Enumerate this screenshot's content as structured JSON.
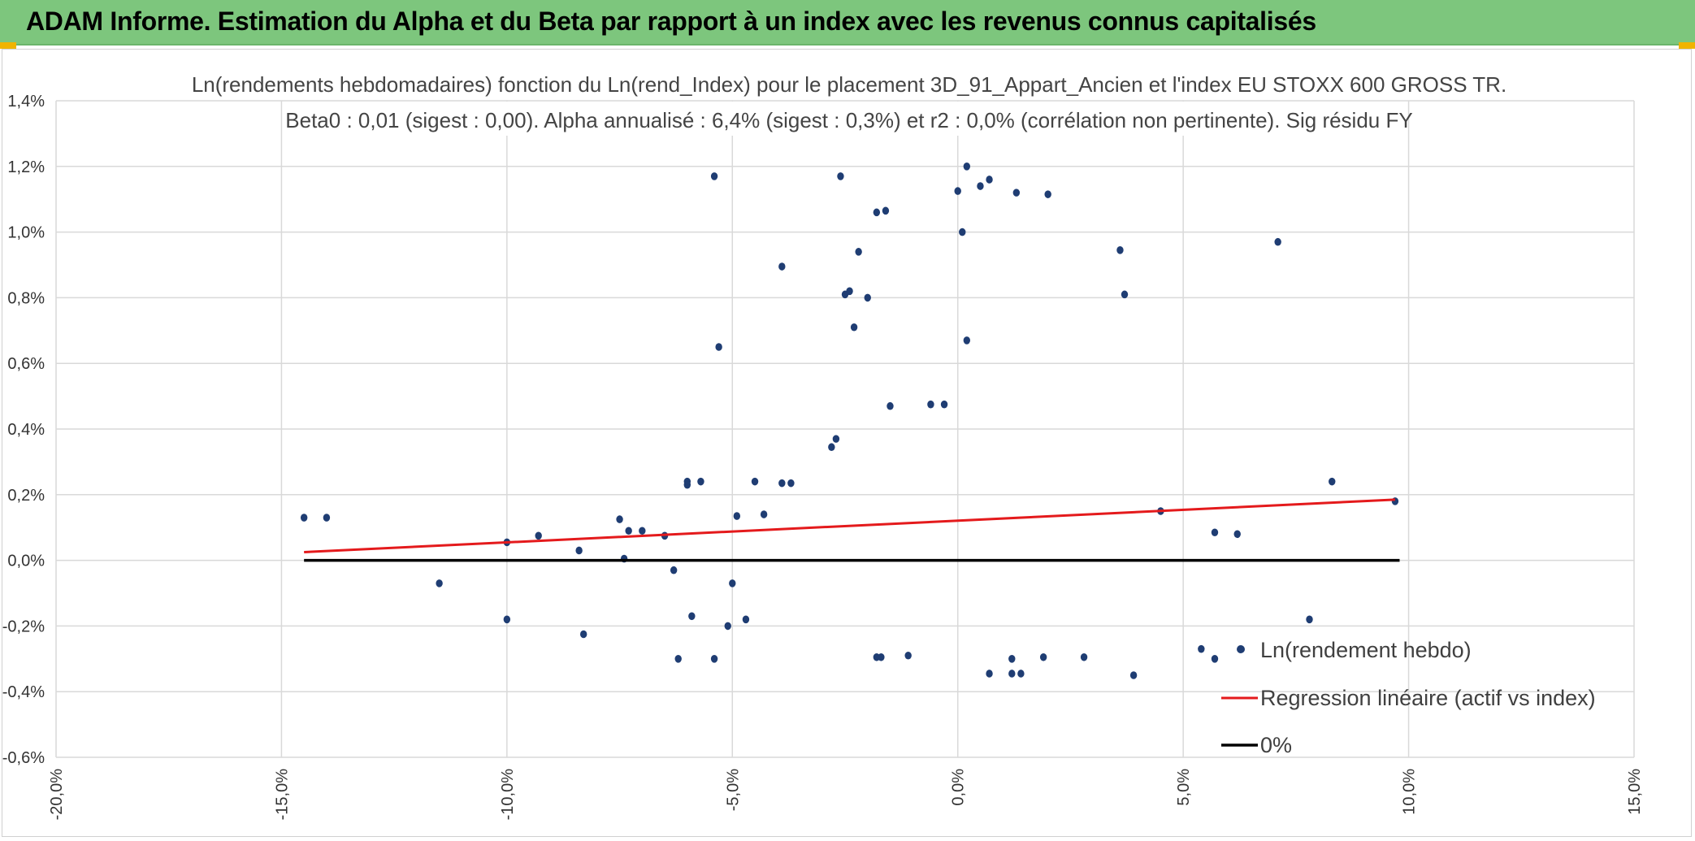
{
  "header": {
    "title": "ADAM Informe. Estimation du Alpha et du Beta par rapport à un index avec les revenus connus capitalisés"
  },
  "colors": {
    "banner": "#7dc67d",
    "points": "#1f3d73",
    "regression": "#e41a1c",
    "zero_line": "#000000",
    "grid": "#d9d9d9"
  },
  "chart_data": {
    "type": "scatter",
    "title_line1": "Ln(rendements hebdomadaires) fonction du Ln(rend_Index) pour le placement 3D_91_Appart_Ancien et l'index EU STOXX 600 GROSS TR.",
    "title_line2": "Beta0 : 0,01 (sigest : 0,00). Alpha annualisé : 6,4% (sigest : 0,3%) et r2 : 0,0% (corrélation non pertinente). Sig résidu FY",
    "xlim": [
      -20,
      15
    ],
    "ylim": [
      -0.6,
      1.4
    ],
    "x_unit": "%",
    "y_unit": "%",
    "x_ticks": [
      "-20,0%",
      "-15,0%",
      "-10,0%",
      "-5,0%",
      "0,0%",
      "5,0%",
      "10,0%",
      "15,0%"
    ],
    "y_ticks": [
      "-0,6%",
      "-0,4%",
      "-0,2%",
      "0,0%",
      "0,2%",
      "0,4%",
      "0,6%",
      "0,8%",
      "1,0%",
      "1,2%",
      "1,4%"
    ],
    "grid": true,
    "legend_position": "bottom-right",
    "legend": [
      "Ln(rendement hebdo)",
      "Regression linéaire (actif vs index)",
      "0%"
    ],
    "series": [
      {
        "name": "Ln(rendement hebdo)",
        "kind": "points",
        "points": [
          [
            -14.5,
            0.13
          ],
          [
            -14.0,
            0.13
          ],
          [
            -11.5,
            -0.07
          ],
          [
            -10.0,
            0.055
          ],
          [
            -10.0,
            -0.18
          ],
          [
            -9.3,
            0.075
          ],
          [
            -8.4,
            0.03
          ],
          [
            -8.3,
            -0.225
          ],
          [
            -7.5,
            0.125
          ],
          [
            -7.4,
            0.005
          ],
          [
            -7.3,
            0.09
          ],
          [
            -7.0,
            0.09
          ],
          [
            -6.5,
            0.075
          ],
          [
            -6.3,
            -0.03
          ],
          [
            -6.2,
            -0.3
          ],
          [
            -6.0,
            0.24
          ],
          [
            -6.0,
            0.23
          ],
          [
            -5.9,
            -0.17
          ],
          [
            -5.7,
            0.24
          ],
          [
            -5.4,
            1.17
          ],
          [
            -5.4,
            -0.3
          ],
          [
            -5.3,
            0.65
          ],
          [
            -5.1,
            -0.2
          ],
          [
            -5.0,
            -0.07
          ],
          [
            -4.9,
            0.135
          ],
          [
            -4.7,
            -0.18
          ],
          [
            -4.5,
            0.24
          ],
          [
            -4.3,
            0.14
          ],
          [
            -3.9,
            0.235
          ],
          [
            -3.7,
            0.235
          ],
          [
            -3.9,
            0.895
          ],
          [
            -2.8,
            0.345
          ],
          [
            -2.7,
            0.37
          ],
          [
            -2.6,
            1.17
          ],
          [
            -2.5,
            0.81
          ],
          [
            -2.4,
            0.82
          ],
          [
            -2.3,
            0.71
          ],
          [
            -2.2,
            0.94
          ],
          [
            -2.0,
            0.8
          ],
          [
            -1.8,
            1.06
          ],
          [
            -1.6,
            1.065
          ],
          [
            -1.5,
            0.47
          ],
          [
            -1.8,
            -0.295
          ],
          [
            -1.7,
            -0.295
          ],
          [
            -1.1,
            -0.29
          ],
          [
            -0.6,
            0.475
          ],
          [
            -0.3,
            0.475
          ],
          [
            0.0,
            1.125
          ],
          [
            0.2,
            1.2
          ],
          [
            0.5,
            1.14
          ],
          [
            0.7,
            1.16
          ],
          [
            1.3,
            1.12
          ],
          [
            2.0,
            1.115
          ],
          [
            0.1,
            1.0
          ],
          [
            0.2,
            0.67
          ],
          [
            0.7,
            -0.345
          ],
          [
            1.2,
            -0.3
          ],
          [
            1.2,
            -0.345
          ],
          [
            1.4,
            -0.345
          ],
          [
            1.9,
            -0.295
          ],
          [
            2.8,
            -0.295
          ],
          [
            3.9,
            -0.35
          ],
          [
            3.6,
            0.945
          ],
          [
            3.7,
            0.81
          ],
          [
            4.5,
            0.15
          ],
          [
            5.4,
            -0.27
          ],
          [
            5.7,
            -0.3
          ],
          [
            5.7,
            0.085
          ],
          [
            6.2,
            0.08
          ],
          [
            7.1,
            0.97
          ],
          [
            7.8,
            -0.18
          ],
          [
            8.3,
            0.24
          ],
          [
            9.7,
            0.18
          ]
        ]
      },
      {
        "name": "Regression linéaire (actif vs index)",
        "kind": "line",
        "points": [
          [
            -14.5,
            0.025
          ],
          [
            9.7,
            0.185
          ]
        ]
      },
      {
        "name": "0%",
        "kind": "line",
        "points": [
          [
            -14.5,
            0.0
          ],
          [
            9.8,
            0.0
          ]
        ]
      }
    ]
  }
}
